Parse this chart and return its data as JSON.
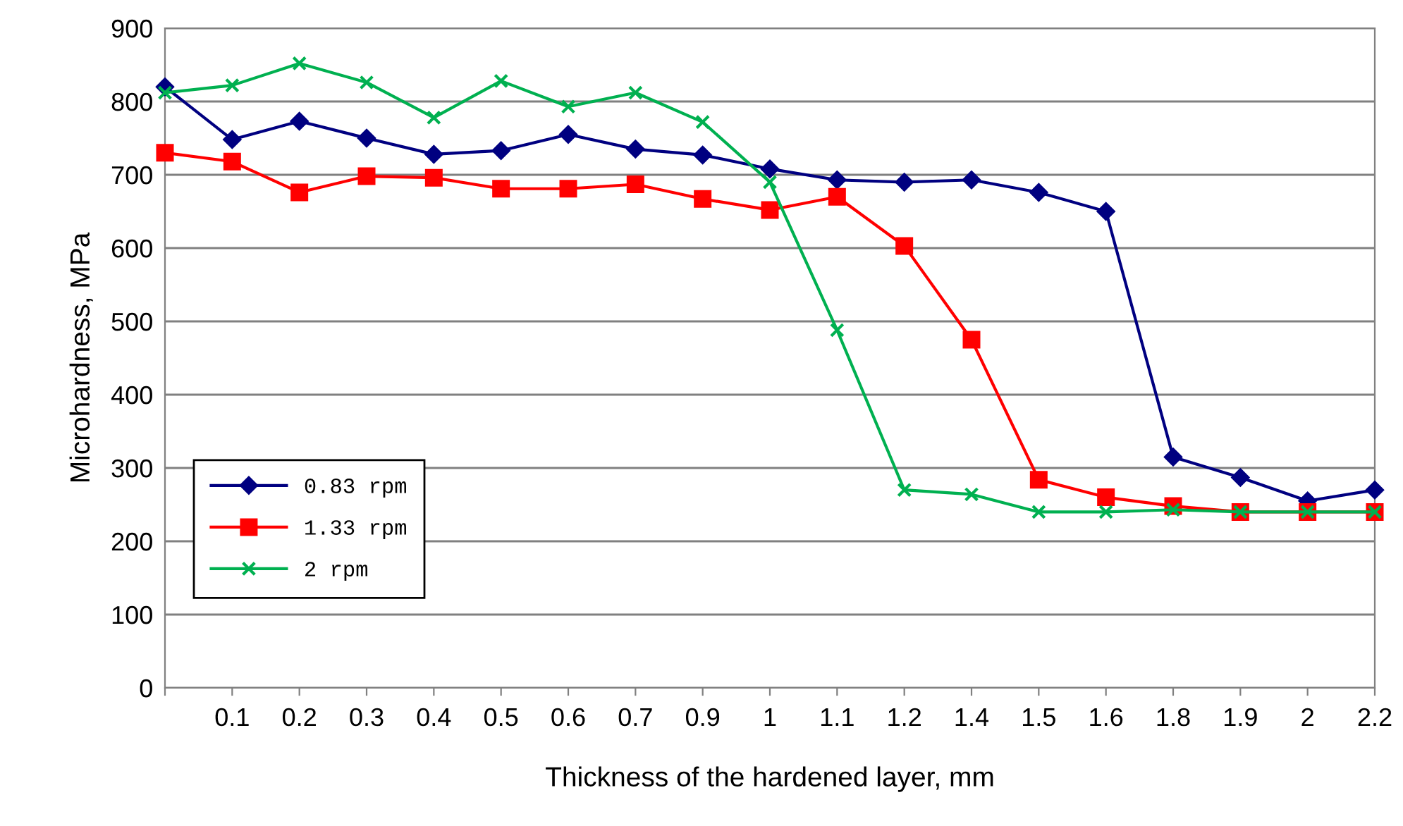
{
  "chart_data": {
    "type": "line",
    "xlabel": "Thickness of the hardened layer, mm",
    "ylabel": "Microhardness, MPa",
    "categories": [
      null,
      "0.1",
      "0.2",
      "0.3",
      "0.4",
      "0.5",
      "0.6",
      "0.7",
      "0.9",
      "1",
      "1.1",
      "1.2",
      "1.4",
      "1.5",
      "1.6",
      "1.8",
      "1.9",
      "2",
      "2.2"
    ],
    "series": [
      {
        "name": "0.83 rpm",
        "color": "#000080",
        "marker": "diamond",
        "values": [
          820,
          748,
          773,
          750,
          728,
          733,
          755,
          735,
          727,
          708,
          693,
          690,
          693,
          676,
          650,
          315,
          287,
          255,
          270
        ]
      },
      {
        "name": "1.33 rpm",
        "color": "#ff0000",
        "marker": "square",
        "values": [
          730,
          718,
          676,
          698,
          696,
          681,
          681,
          687,
          667,
          652,
          670,
          603,
          475,
          284,
          260,
          248,
          240,
          240,
          240
        ]
      },
      {
        "name": "2 rpm",
        "color": "#00b050",
        "marker": "cross",
        "values": [
          812,
          822,
          852,
          826,
          778,
          828,
          793,
          812,
          772,
          690,
          488,
          270,
          264,
          240,
          240,
          243,
          240,
          240,
          240
        ]
      }
    ],
    "ylim": [
      0,
      900
    ],
    "yticks": [
      0,
      100,
      200,
      300,
      400,
      500,
      600,
      700,
      800,
      900
    ],
    "grid": "y",
    "legend": "bottom left",
    "line_style": "solid"
  }
}
